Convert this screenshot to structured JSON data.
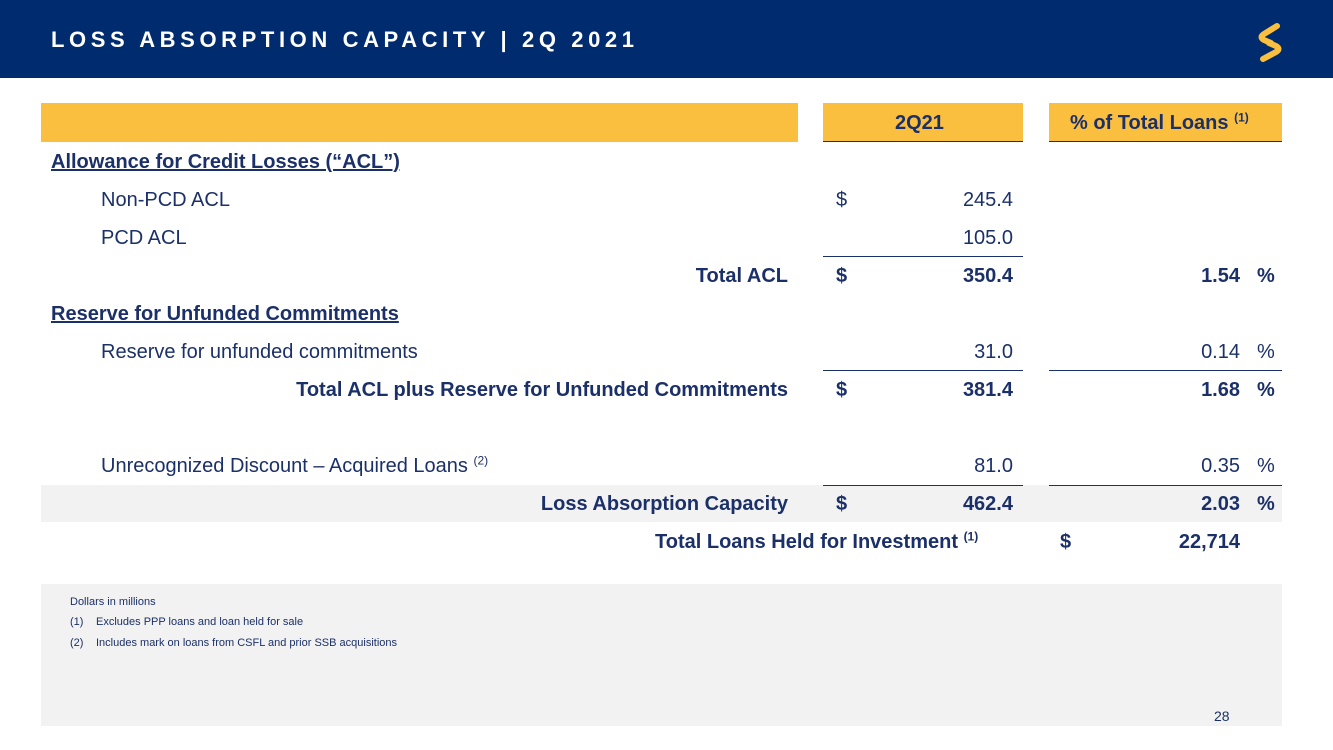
{
  "header": {
    "title": "LOSS ABSORPTION CAPACITY | 2Q 2021",
    "logo_icon": "dollar-s-logo-icon"
  },
  "table": {
    "col_period": "2Q21",
    "col_pct": "% of Total Loans",
    "col_pct_note": "(1)",
    "section_acl": "Allowance for Credit Losses (“ACL”)",
    "non_pcd": {
      "label": "Non-PCD ACL",
      "currency": "$",
      "value": "245.4"
    },
    "pcd": {
      "label": "PCD ACL",
      "value": "105.0"
    },
    "total_acl": {
      "label": "Total ACL",
      "currency": "$",
      "value": "350.4",
      "pct": "1.54",
      "pct_sign": "%"
    },
    "section_unfunded": "Reserve for Unfunded Commitments",
    "reserve_unfunded": {
      "label": "Reserve for unfunded commitments",
      "value": "31.0",
      "pct": "0.14",
      "pct_sign": "%"
    },
    "total_acl_reserve": {
      "label": "Total ACL plus Reserve for Unfunded Commitments",
      "currency": "$",
      "value": "381.4",
      "pct": "1.68",
      "pct_sign": "%"
    },
    "unrecognized": {
      "label": "Unrecognized Discount – Acquired Loans",
      "note": "(2)",
      "value": "81.0",
      "pct": "0.35",
      "pct_sign": "%"
    },
    "loss_absorption": {
      "label": "Loss Absorption Capacity",
      "currency": "$",
      "value": "462.4",
      "pct": "2.03",
      "pct_sign": "%"
    },
    "total_loans": {
      "label": "Total Loans Held for Investment",
      "note": "(1)",
      "currency": "$",
      "value": "22,714"
    }
  },
  "footnotes": {
    "units": "Dollars in millions",
    "n1_marker": "(1)",
    "n1_text": "Excludes PPP loans and loan held for sale",
    "n2_marker": "(2)",
    "n2_text": "Includes mark on loans from CSFL and prior SSB acquisitions"
  },
  "page_number": "28"
}
